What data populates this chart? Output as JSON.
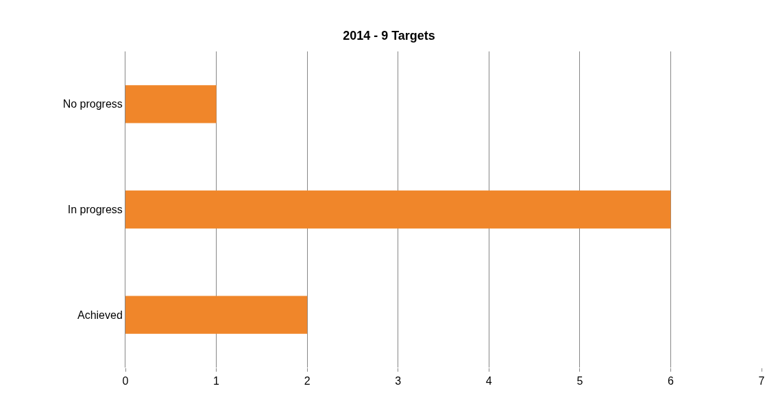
{
  "chart_data": {
    "type": "bar",
    "orientation": "horizontal",
    "title": "2014 - 9 Targets",
    "categories": [
      "No progress",
      "In progress",
      "Achieved"
    ],
    "values": [
      1,
      6,
      2
    ],
    "color": "#f0862a",
    "xlim": [
      0,
      7
    ],
    "xticks": [
      0,
      1,
      2,
      3,
      4,
      5,
      6,
      7
    ],
    "grid": "x"
  }
}
